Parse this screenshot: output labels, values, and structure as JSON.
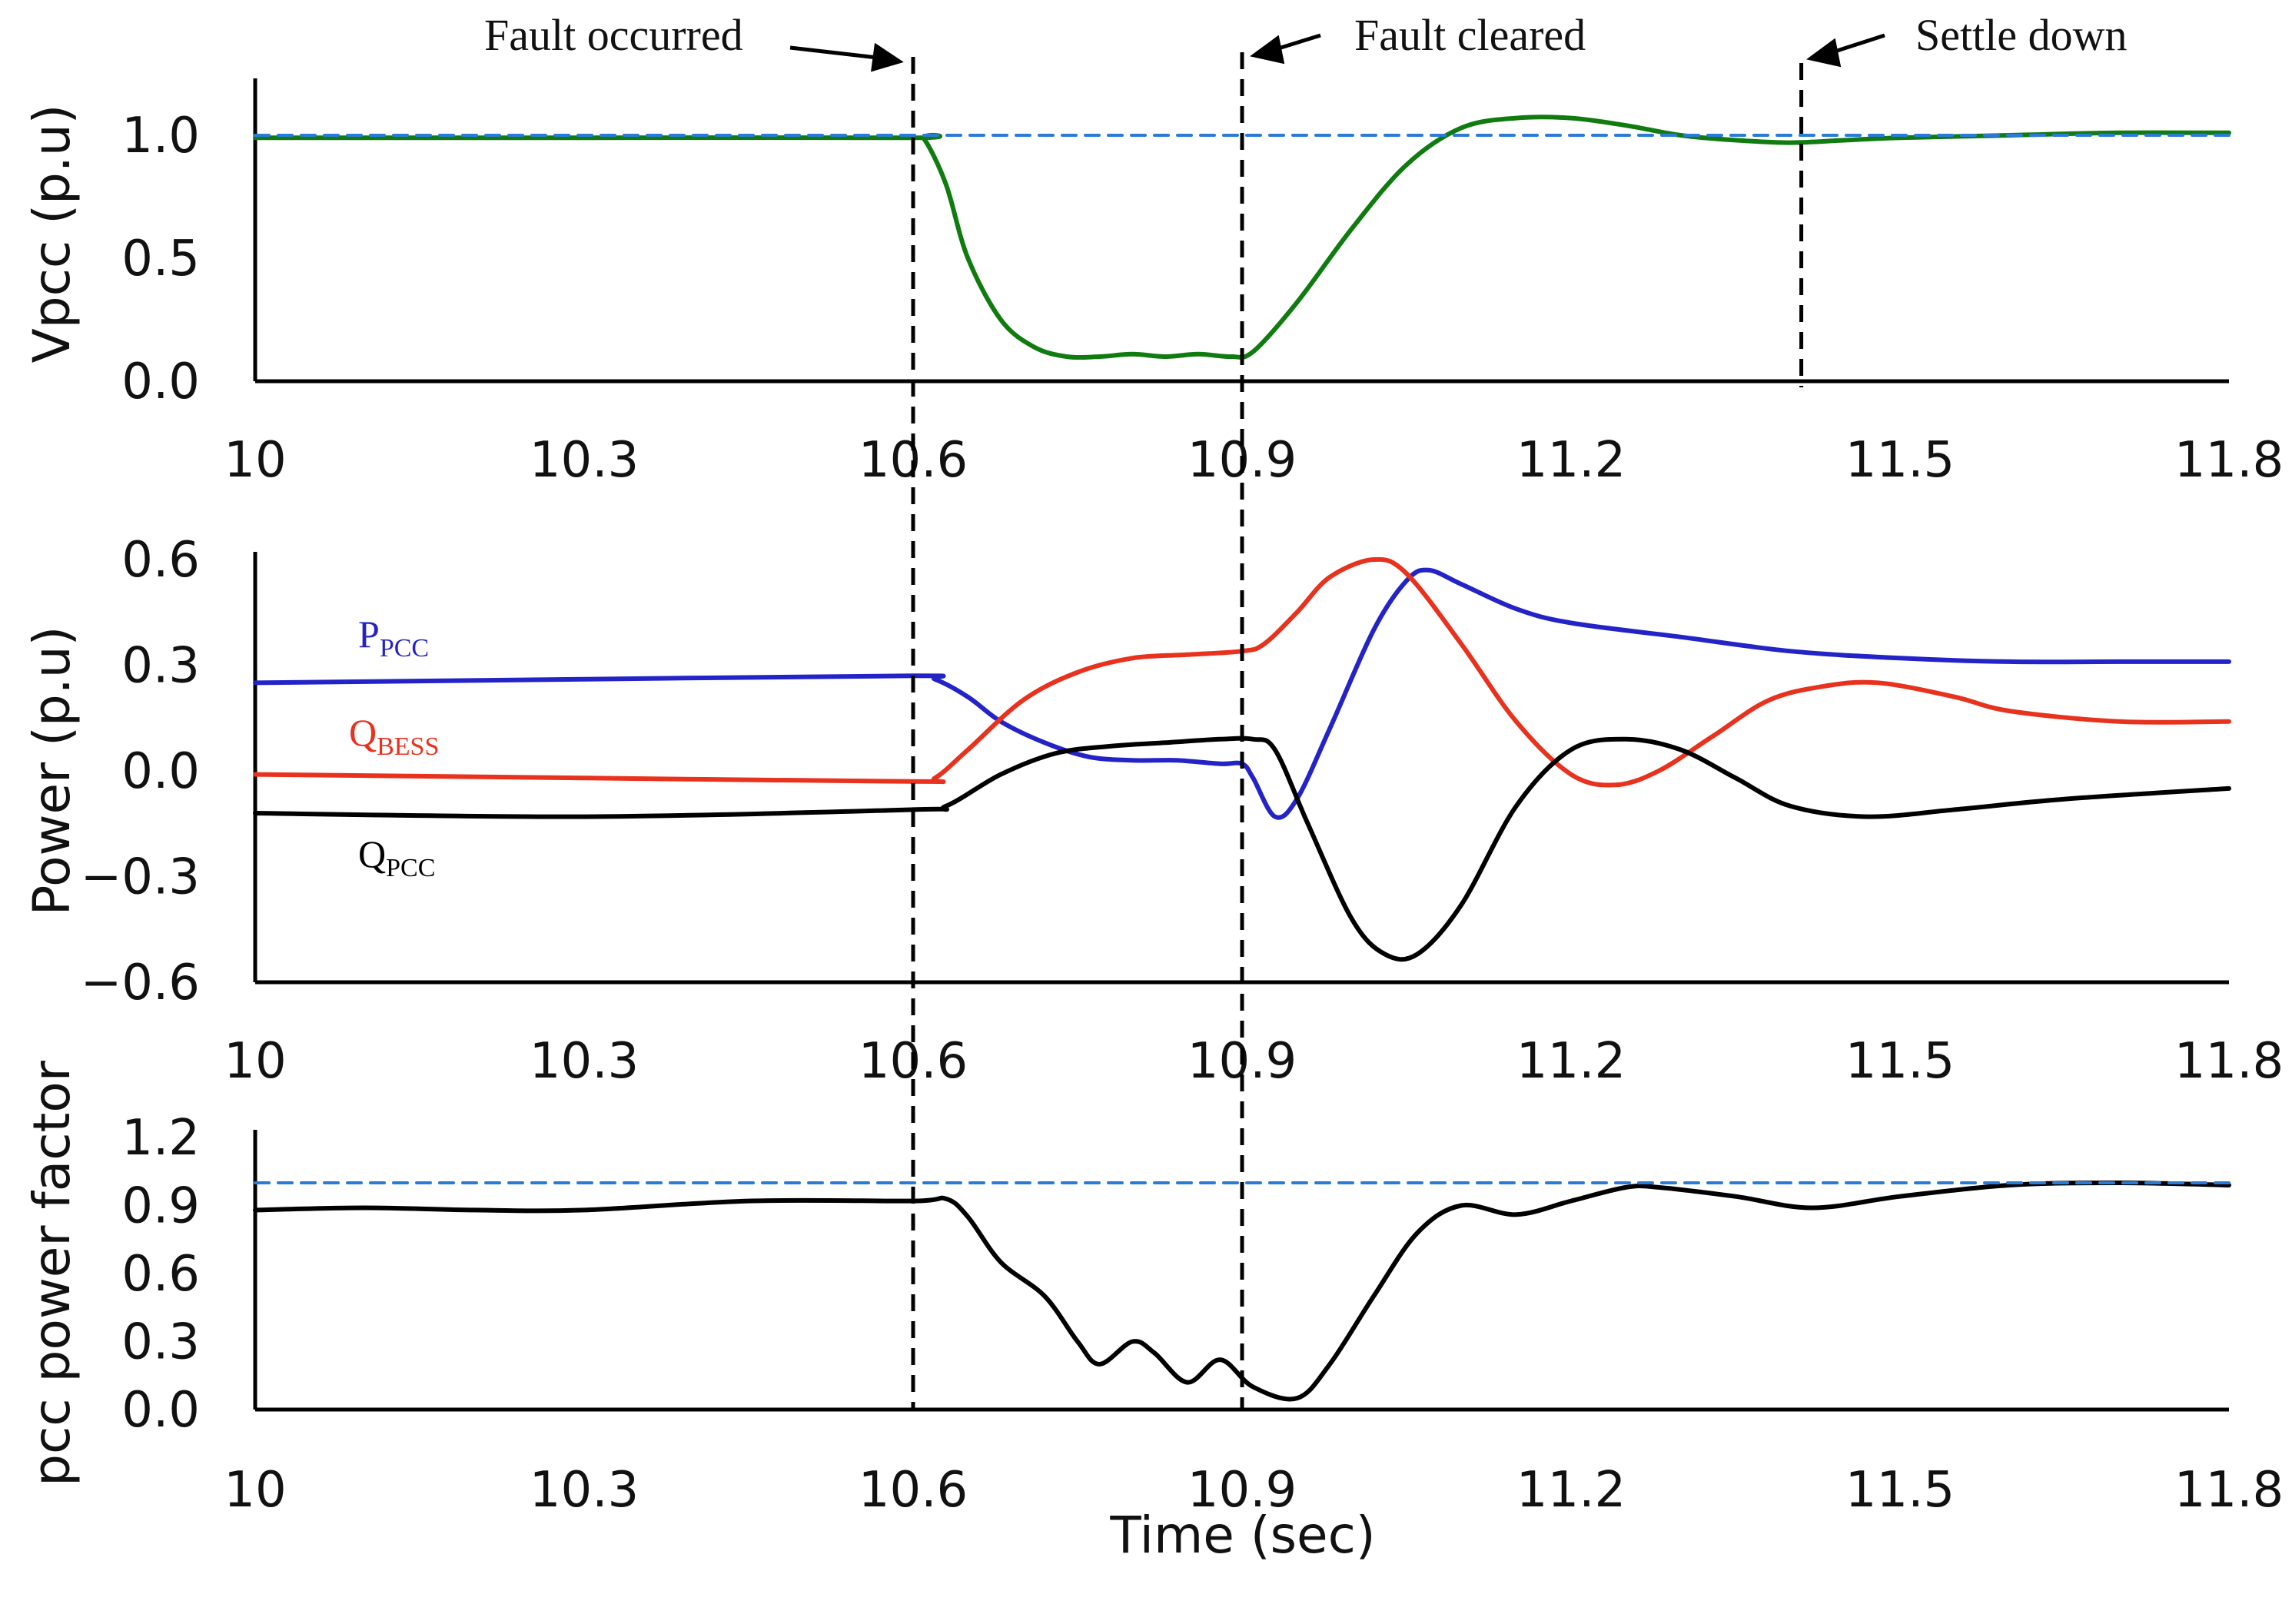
{
  "chart_data": [
    {
      "type": "line",
      "panel": "voltage",
      "ylabel": "Vpcc  (p.u)",
      "xlim": [
        10,
        11.8
      ],
      "ylim": [
        0,
        1.2
      ],
      "xticks": [
        "10",
        "10.3",
        "10.6",
        "10.9",
        "11.2",
        "11.5",
        "11.8"
      ],
      "yticks": [
        "0.0",
        "0.5",
        "1.0"
      ],
      "series": [
        {
          "name": "Vpcc",
          "color": "#107c10",
          "x": [
            10.0,
            10.3,
            10.6,
            10.61,
            10.63,
            10.65,
            10.68,
            10.71,
            10.74,
            10.77,
            10.8,
            10.83,
            10.86,
            10.89,
            10.91,
            10.95,
            11.0,
            11.05,
            11.1,
            11.15,
            11.2,
            11.25,
            11.3,
            11.35,
            11.4,
            11.45,
            11.5,
            11.6,
            11.7,
            11.8
          ],
          "y": [
            0.99,
            0.99,
            0.99,
            0.985,
            0.8,
            0.5,
            0.25,
            0.14,
            0.1,
            0.1,
            0.11,
            0.1,
            0.11,
            0.1,
            0.12,
            0.32,
            0.62,
            0.88,
            1.03,
            1.07,
            1.07,
            1.04,
            1.0,
            0.98,
            0.97,
            0.98,
            0.99,
            1.0,
            1.01,
            1.01
          ]
        },
        {
          "name": "Vpcc reference",
          "color": "#2a7bd8",
          "dashed": true,
          "x": [
            10.0,
            11.8
          ],
          "y": [
            1.0,
            1.0
          ]
        }
      ]
    },
    {
      "type": "line",
      "panel": "power",
      "ylabel": "Power  (p.u)",
      "xlim": [
        10,
        11.8
      ],
      "ylim": [
        -0.6,
        0.6
      ],
      "xticks": [
        "10",
        "10.3",
        "10.6",
        "10.9",
        "11.2",
        "11.5",
        "11.8"
      ],
      "yticks": [
        "0.6",
        "0.3",
        "0.0",
        "-0.3",
        "-0.6"
      ],
      "series": [
        {
          "name": "PPCC",
          "label_main": "P",
          "label_sub": "PCC",
          "color": "#2323c8",
          "x": [
            10.0,
            10.3,
            10.6,
            10.62,
            10.65,
            10.68,
            10.72,
            10.76,
            10.8,
            10.84,
            10.88,
            10.9,
            10.91,
            10.93,
            10.95,
            10.98,
            11.02,
            11.05,
            11.07,
            11.1,
            11.15,
            11.2,
            11.3,
            11.4,
            11.5,
            11.6,
            11.7,
            11.8
          ],
          "y": [
            0.25,
            0.26,
            0.27,
            0.26,
            0.21,
            0.14,
            0.08,
            0.04,
            0.03,
            0.03,
            0.02,
            0.02,
            -0.02,
            -0.13,
            -0.08,
            0.12,
            0.4,
            0.54,
            0.57,
            0.53,
            0.46,
            0.42,
            0.38,
            0.34,
            0.32,
            0.31,
            0.31,
            0.31
          ]
        },
        {
          "name": "QBESS",
          "label_main": "Q",
          "label_sub": "BESS",
          "color": "#e8321e",
          "x": [
            10.0,
            10.3,
            10.6,
            10.62,
            10.65,
            10.7,
            10.75,
            10.8,
            10.85,
            10.9,
            10.92,
            10.95,
            10.98,
            11.02,
            11.05,
            11.1,
            11.15,
            11.2,
            11.24,
            11.28,
            11.33,
            11.38,
            11.43,
            11.48,
            11.55,
            11.6,
            11.7,
            11.8
          ],
          "y": [
            -0.01,
            -0.02,
            -0.03,
            -0.02,
            0.06,
            0.2,
            0.28,
            0.32,
            0.33,
            0.34,
            0.36,
            0.45,
            0.55,
            0.6,
            0.56,
            0.36,
            0.14,
            -0.01,
            -0.04,
            0.0,
            0.1,
            0.2,
            0.24,
            0.25,
            0.21,
            0.17,
            0.14,
            0.14
          ]
        },
        {
          "name": "QPCC",
          "label_main": "Q",
          "label_sub": "PCC",
          "color": "#000000",
          "x": [
            10.0,
            10.3,
            10.6,
            10.63,
            10.68,
            10.73,
            10.78,
            10.83,
            10.88,
            10.91,
            10.93,
            10.96,
            11.0,
            11.03,
            11.06,
            11.1,
            11.15,
            11.2,
            11.25,
            11.3,
            11.35,
            11.4,
            11.47,
            11.55,
            11.65,
            11.8
          ],
          "y": [
            -0.12,
            -0.13,
            -0.11,
            -0.1,
            -0.01,
            0.05,
            0.07,
            0.08,
            0.09,
            0.09,
            0.06,
            -0.15,
            -0.42,
            -0.52,
            -0.52,
            -0.38,
            -0.1,
            0.06,
            0.09,
            0.06,
            -0.02,
            -0.1,
            -0.13,
            -0.11,
            -0.08,
            -0.05
          ]
        }
      ]
    },
    {
      "type": "line",
      "panel": "power-factor",
      "ylabel": "pcc power factor",
      "xlabel": "Time (sec)",
      "xlim": [
        10,
        11.8
      ],
      "ylim": [
        0,
        1.2
      ],
      "xticks": [
        "10",
        "10.3",
        "10.6",
        "10.9",
        "11.2",
        "11.5",
        "11.8"
      ],
      "yticks": [
        "0.0",
        "0.3",
        "0.6",
        "0.9",
        "1.2"
      ],
      "series": [
        {
          "name": "pcc power factor",
          "color": "#000000",
          "x": [
            10.0,
            10.1,
            10.2,
            10.3,
            10.45,
            10.6,
            10.63,
            10.65,
            10.68,
            10.72,
            10.75,
            10.77,
            10.8,
            10.82,
            10.85,
            10.88,
            10.91,
            10.95,
            10.98,
            11.02,
            11.06,
            11.1,
            11.15,
            11.2,
            11.25,
            11.28,
            11.35,
            11.42,
            11.5,
            11.6,
            11.7,
            11.8
          ],
          "y": [
            0.88,
            0.89,
            0.88,
            0.88,
            0.92,
            0.92,
            0.93,
            0.85,
            0.65,
            0.5,
            0.3,
            0.2,
            0.3,
            0.25,
            0.12,
            0.22,
            0.1,
            0.05,
            0.2,
            0.5,
            0.78,
            0.9,
            0.86,
            0.92,
            0.98,
            0.98,
            0.94,
            0.89,
            0.94,
            0.99,
            1.0,
            0.99
          ]
        },
        {
          "name": "power factor reference",
          "color": "#2a7bd8",
          "dashed": true,
          "x": [
            10.0,
            11.8
          ],
          "y": [
            1.0,
            1.0
          ]
        }
      ]
    }
  ],
  "annotations": {
    "fault_occurred": "Fault occurred",
    "fault_cleared": "Fault cleared",
    "settle_down": "Settle down",
    "markers_x": [
      10.6,
      10.9,
      11.41
    ]
  }
}
